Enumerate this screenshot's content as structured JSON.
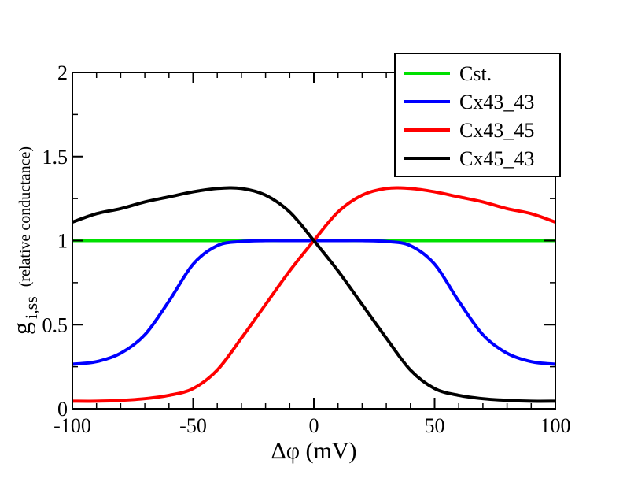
{
  "chart_data": {
    "type": "line",
    "xlim": [
      -100,
      100
    ],
    "ylim": [
      0,
      2
    ],
    "xticks": [
      -100,
      -50,
      0,
      50,
      100
    ],
    "xtick_labels": [
      "-100",
      "-50",
      "0",
      "50",
      "100"
    ],
    "yticks": [
      0,
      0.5,
      1,
      1.5,
      2
    ],
    "ytick_labels": [
      "0",
      "0.5",
      "1",
      "1.5",
      "2"
    ],
    "xlabel": "Δφ  (mV)",
    "ylabel": {
      "main": "g",
      "subscript": "i,ss",
      "note": "(relative conductance)"
    },
    "grid": false,
    "legend_position": "top-right",
    "x": [
      -100,
      -90,
      -80,
      -70,
      -60,
      -50,
      -40,
      -30,
      -20,
      -10,
      0,
      10,
      20,
      30,
      40,
      50,
      60,
      70,
      80,
      90,
      100
    ],
    "series": [
      {
        "name": "Cst.",
        "color": "#00e000",
        "values": [
          1,
          1,
          1,
          1,
          1,
          1,
          1,
          1,
          1,
          1,
          1,
          1,
          1,
          1,
          1,
          1,
          1,
          1,
          1,
          1,
          1
        ]
      },
      {
        "name": "Cx43_43",
        "color": "#0000ff",
        "values": [
          0.265,
          0.28,
          0.33,
          0.44,
          0.64,
          0.86,
          0.97,
          0.995,
          1.0,
          1.0,
          1.0,
          1.0,
          1.0,
          0.995,
          0.97,
          0.86,
          0.64,
          0.44,
          0.33,
          0.28,
          0.265
        ]
      },
      {
        "name": "Cx43_45",
        "color": "#ff0000",
        "values": [
          0.045,
          0.045,
          0.05,
          0.06,
          0.08,
          0.12,
          0.23,
          0.42,
          0.62,
          0.82,
          1.0,
          1.17,
          1.27,
          1.31,
          1.31,
          1.29,
          1.26,
          1.23,
          1.19,
          1.16,
          1.11
        ]
      },
      {
        "name": "Cx45_43",
        "color": "#000000",
        "values": [
          1.11,
          1.16,
          1.19,
          1.23,
          1.26,
          1.29,
          1.31,
          1.31,
          1.27,
          1.17,
          1.0,
          0.82,
          0.62,
          0.42,
          0.23,
          0.12,
          0.08,
          0.06,
          0.05,
          0.045,
          0.045
        ]
      }
    ]
  }
}
